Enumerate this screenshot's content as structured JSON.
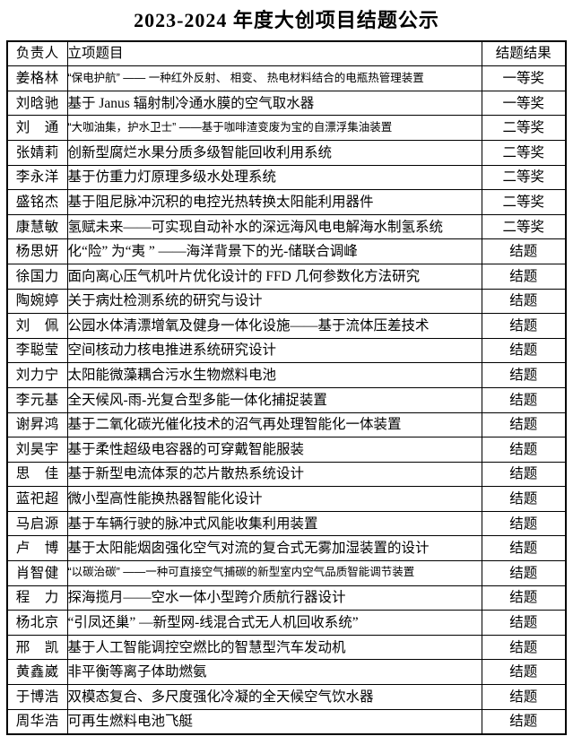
{
  "title": "2023-2024 年度大创项目结题公示",
  "table": {
    "headers": {
      "owner": "负责人",
      "project": "立项题目",
      "result": "结题结果"
    },
    "rows": [
      {
        "name": "姜格林",
        "project": "“保电护航” —— 一种红外反射、 相变、 热电材料结合的电瓶热管理装置",
        "result": "一等奖"
      },
      {
        "name": "刘晗驰",
        "project": "基于 Janus 辐射制冷通水膜的空气取水器",
        "result": "一等奖"
      },
      {
        "name": "刘　通",
        "project": "“大咖油集，护水卫士” ——基于咖啡渣变废为宝的自漂浮集油装置",
        "result": "二等奖"
      },
      {
        "name": "张婧莉",
        "project": "创新型腐烂水果分质多级智能回收利用系统",
        "result": "二等奖"
      },
      {
        "name": "李永洋",
        "project": "基于仿重力灯原理多级水处理系统",
        "result": "二等奖"
      },
      {
        "name": "盛铭杰",
        "project": "基于阻尼脉冲沉积的电控光热转换太阳能利用器件",
        "result": "二等奖"
      },
      {
        "name": "康慧敏",
        "project": "氢赋未来——可实现自动补水的深远海风电电解海水制氢系统",
        "result": "二等奖"
      },
      {
        "name": "杨思妍",
        "project": "化“险” 为“夷 ” ——海洋背景下的光-储联合调峰",
        "result": "结题"
      },
      {
        "name": "徐国力",
        "project": "面向离心压气机叶片优化设计的 FFD 几何参数化方法研究",
        "result": "结题"
      },
      {
        "name": "陶婉婷",
        "project": "关于病灶检测系统的研究与设计",
        "result": "结题"
      },
      {
        "name": "刘　佩",
        "project": "公园水体清漂增氧及健身一体化设施——基于流体压差技术",
        "result": "结题"
      },
      {
        "name": "李聪莹",
        "project": "空间核动力核电推进系统研究设计",
        "result": "结题"
      },
      {
        "name": "刘力宁",
        "project": "太阳能微藻耦合污水生物燃料电池",
        "result": "结题"
      },
      {
        "name": "李元基",
        "project": "全天候风-雨-光复合型多能一体化捕捉装置",
        "result": "结题"
      },
      {
        "name": "谢昇鸿",
        "project": "基于二氧化碳光催化技术的沼气再处理智能化一体装置",
        "result": "结题"
      },
      {
        "name": "刘昊宇",
        "project": "基于柔性超级电容器的可穿戴智能服装",
        "result": "结题"
      },
      {
        "name": "思　佳",
        "project": "基于新型电流体泵的芯片散热系统设计",
        "result": "结题"
      },
      {
        "name": "蓝祀超",
        "project": "微小型高性能换热器智能化设计",
        "result": "结题"
      },
      {
        "name": "马启源",
        "project": "基于车辆行驶的脉冲式风能收集利用装置",
        "result": "结题"
      },
      {
        "name": "卢　博",
        "project": "基于太阳能烟囱强化空气对流的复合式无雾加湿装置的设计",
        "result": "结题"
      },
      {
        "name": "肖智健",
        "project": "“以碳治碳” ——一种可直接空气捕碳的新型室内空气品质智能调节装置",
        "result": "结题"
      },
      {
        "name": "程　力",
        "project": "探海揽月——空水一体小型跨介质航行器设计",
        "result": "结题"
      },
      {
        "name": "杨北京",
        "project": "“引凤还巢” —新型网-线混合式无人机回收系统”",
        "result": "结题"
      },
      {
        "name": "邢　凯",
        "project": "基于人工智能调控空燃比的智慧型汽车发动机",
        "result": "结题"
      },
      {
        "name": "黄鑫崴",
        "project": "非平衡等离子体助燃氨",
        "result": "结题"
      },
      {
        "name": "于博浩",
        "project": "双模态复合、多尺度强化冷凝的全天候空气饮水器",
        "result": "结题"
      },
      {
        "name": "周华浩",
        "project": "可再生燃料电池飞艇",
        "result": "结题"
      }
    ]
  }
}
